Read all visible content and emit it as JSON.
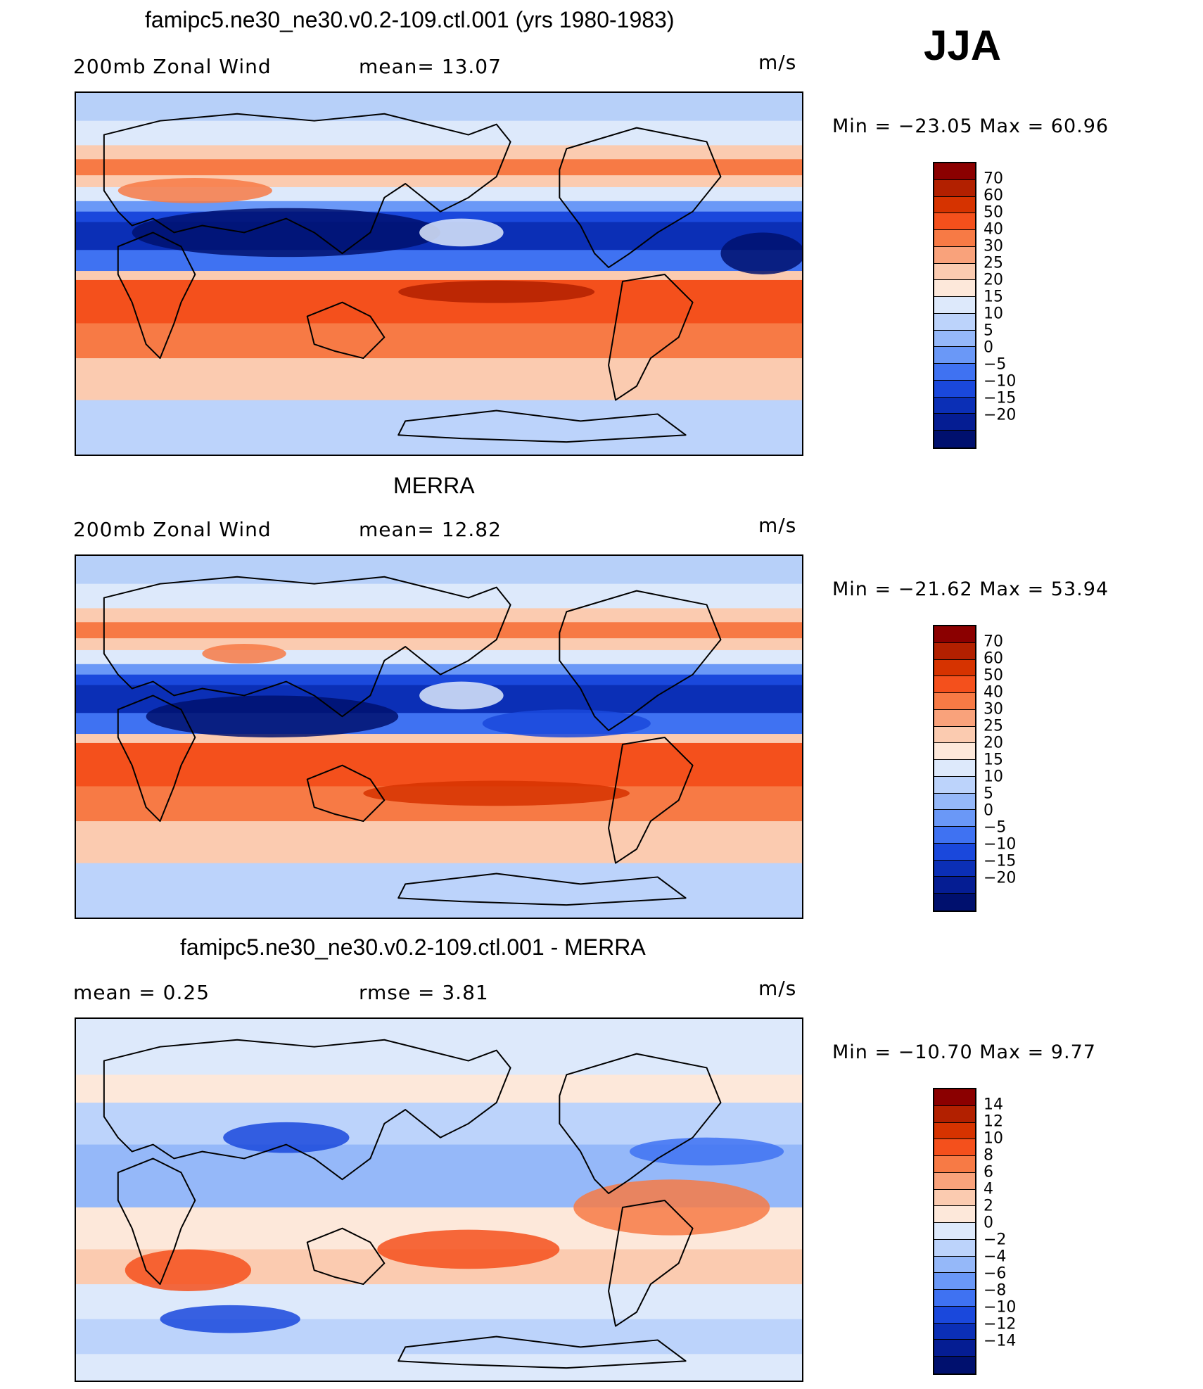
{
  "season": "JJA",
  "panels": [
    {
      "title": "famipc5.ne30_ne30.v0.2-109.ctl.001 (yrs 1980-1983)",
      "left_label": "200mb  Zonal  Wind",
      "mid_label": "mean=   13.07",
      "units": "m/s",
      "minmax": "Min  =  −23.05  Max  =    60.96",
      "colorbar": {
        "colors": [
          "#8b0000",
          "#b22000",
          "#d63300",
          "#f4501c",
          "#f77a45",
          "#f9a27b",
          "#fbcbb0",
          "#fde8da",
          "#dde9fb",
          "#bcd3fb",
          "#95b8f9",
          "#6a98f7",
          "#3f72f2",
          "#1a48dc",
          "#0b2fb6",
          "#051d93",
          "#00106e"
        ],
        "labels": [
          "70",
          "60",
          "50",
          "40",
          "30",
          "25",
          "20",
          "15",
          "10",
          "5",
          "0",
          "−5",
          "−10",
          "−15",
          "−20"
        ]
      }
    },
    {
      "title": "MERRA",
      "left_label": "200mb  Zonal  Wind",
      "mid_label": "mean=   12.82",
      "units": "m/s",
      "minmax": "Min  =  −21.62  Max  =    53.94",
      "colorbar": {
        "colors": [
          "#8b0000",
          "#b22000",
          "#d63300",
          "#f4501c",
          "#f77a45",
          "#f9a27b",
          "#fbcbb0",
          "#fde8da",
          "#dde9fb",
          "#bcd3fb",
          "#95b8f9",
          "#6a98f7",
          "#3f72f2",
          "#1a48dc",
          "#0b2fb6",
          "#051d93",
          "#00106e"
        ],
        "labels": [
          "70",
          "60",
          "50",
          "40",
          "30",
          "25",
          "20",
          "15",
          "10",
          "5",
          "0",
          "−5",
          "−10",
          "−15",
          "−20"
        ]
      }
    },
    {
      "title": "famipc5.ne30_ne30.v0.2-109.ctl.001 - MERRA",
      "left_label": "mean  =      0.25",
      "mid_label": "rmse  =      3.81",
      "units": "m/s",
      "minmax": "Min  =  −10.70  Max  =      9.77",
      "colorbar": {
        "colors": [
          "#8b0000",
          "#b22000",
          "#d63300",
          "#f4501c",
          "#f77a45",
          "#f9a27b",
          "#fbcbb0",
          "#fde8da",
          "#dde9fb",
          "#bcd3fb",
          "#95b8f9",
          "#6a98f7",
          "#3f72f2",
          "#1a48dc",
          "#0b2fb6",
          "#051d93",
          "#00106e"
        ],
        "labels": [
          "14",
          "12",
          "10",
          "8",
          "6",
          "4",
          "2",
          "0",
          "−2",
          "−4",
          "−6",
          "−8",
          "−10",
          "−12",
          "−14"
        ]
      }
    }
  ]
}
